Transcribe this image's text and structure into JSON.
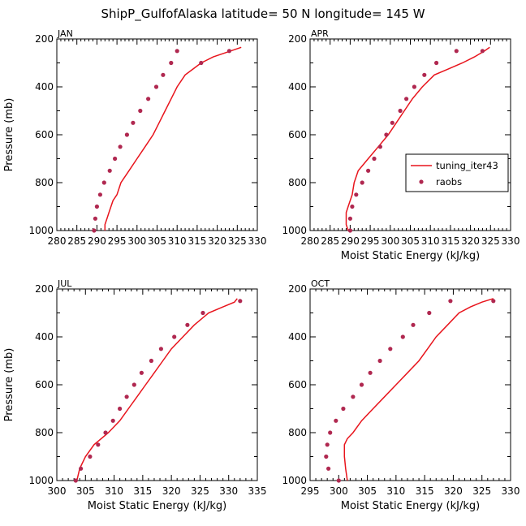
{
  "figure_title": "ShipP_GulfofAlaska  latitude= 50 N longitude= 145 W",
  "colors": {
    "model_line": "#e8141c",
    "raobs_marker": "#b02850",
    "axis": "#000000"
  },
  "legend": {
    "line_label": "tuning_iter43",
    "marker_label": "raobs",
    "placement": "right-center of APR panel"
  },
  "chart_data": [
    {
      "type": "line",
      "panel": "JAN",
      "title": "JAN",
      "xlabel": "",
      "ylabel": "Pressure (mb)",
      "xlim": [
        280,
        330
      ],
      "ylim": [
        1000,
        200
      ],
      "y_inverted": true,
      "xticks": [
        280,
        285,
        290,
        295,
        300,
        305,
        310,
        315,
        320,
        325,
        330
      ],
      "yticks": [
        200,
        400,
        600,
        800,
        1000
      ],
      "series": [
        {
          "name": "tuning_iter43",
          "style": "line",
          "points": [
            [
              292.0,
              1000
            ],
            [
              292.0,
              975
            ],
            [
              292.5,
              950
            ],
            [
              293.0,
              925
            ],
            [
              293.5,
              900
            ],
            [
              294.0,
              875
            ],
            [
              295.0,
              850
            ],
            [
              296.0,
              800
            ],
            [
              298.0,
              750
            ],
            [
              300.0,
              700
            ],
            [
              302.0,
              650
            ],
            [
              304.0,
              600
            ],
            [
              305.5,
              550
            ],
            [
              307.0,
              500
            ],
            [
              308.5,
              450
            ],
            [
              310.0,
              400
            ],
            [
              312.0,
              350
            ],
            [
              314.0,
              325
            ],
            [
              316.0,
              300
            ],
            [
              319.0,
              275
            ],
            [
              322.0,
              258
            ],
            [
              326.0,
              235
            ]
          ]
        },
        {
          "name": "raobs",
          "style": "marker",
          "points": [
            [
              289.3,
              1000
            ],
            [
              289.6,
              950
            ],
            [
              290.0,
              900
            ],
            [
              290.8,
              850
            ],
            [
              291.8,
              800
            ],
            [
              293.2,
              750
            ],
            [
              294.5,
              700
            ],
            [
              295.8,
              650
            ],
            [
              297.5,
              600
            ],
            [
              299.0,
              550
            ],
            [
              300.8,
              500
            ],
            [
              302.8,
              450
            ],
            [
              304.8,
              400
            ],
            [
              306.5,
              350
            ],
            [
              308.5,
              300
            ],
            [
              310.0,
              250
            ],
            [
              316.0,
              300
            ],
            [
              323.0,
              250
            ]
          ]
        }
      ]
    },
    {
      "type": "line",
      "panel": "APR",
      "title": "APR",
      "xlabel": "Moist Static Energy (kJ/kg)",
      "ylabel": "",
      "xlim": [
        280,
        330
      ],
      "ylim": [
        1000,
        200
      ],
      "y_inverted": true,
      "xticks": [
        280,
        285,
        290,
        295,
        300,
        305,
        310,
        315,
        320,
        325,
        330
      ],
      "yticks": [
        200,
        400,
        600,
        800,
        1000
      ],
      "series": [
        {
          "name": "tuning_iter43",
          "style": "line",
          "points": [
            [
              289.5,
              1000
            ],
            [
              289.0,
              975
            ],
            [
              289.0,
              950
            ],
            [
              289.0,
              925
            ],
            [
              289.5,
              900
            ],
            [
              290.0,
              875
            ],
            [
              290.5,
              850
            ],
            [
              291.0,
              800
            ],
            [
              292.0,
              750
            ],
            [
              294.5,
              700
            ],
            [
              297.0,
              650
            ],
            [
              299.5,
              600
            ],
            [
              301.5,
              550
            ],
            [
              303.5,
              500
            ],
            [
              305.5,
              450
            ],
            [
              308.0,
              400
            ],
            [
              311.0,
              350
            ],
            [
              314.5,
              325
            ],
            [
              318.0,
              300
            ],
            [
              321.0,
              275
            ],
            [
              323.5,
              250
            ],
            [
              324.8,
              235
            ]
          ]
        },
        {
          "name": "raobs",
          "style": "marker",
          "points": [
            [
              290.0,
              1000
            ],
            [
              290.0,
              950
            ],
            [
              290.5,
              900
            ],
            [
              291.5,
              850
            ],
            [
              293.0,
              800
            ],
            [
              294.5,
              750
            ],
            [
              296.0,
              700
            ],
            [
              297.5,
              650
            ],
            [
              299.0,
              600
            ],
            [
              300.5,
              550
            ],
            [
              302.5,
              500
            ],
            [
              304.0,
              450
            ],
            [
              306.0,
              400
            ],
            [
              308.5,
              350
            ],
            [
              311.5,
              300
            ],
            [
              316.5,
              250
            ],
            [
              323.0,
              250
            ]
          ]
        }
      ]
    },
    {
      "type": "line",
      "panel": "JUL",
      "title": "JUL",
      "xlabel": "Moist Static Energy (kJ/kg)",
      "ylabel": "Pressure (mb)",
      "xlim": [
        300,
        335
      ],
      "ylim": [
        1000,
        200
      ],
      "y_inverted": true,
      "xticks": [
        300,
        305,
        310,
        315,
        320,
        325,
        330,
        335
      ],
      "yticks": [
        200,
        400,
        600,
        800,
        1000
      ],
      "series": [
        {
          "name": "tuning_iter43",
          "style": "line",
          "points": [
            [
              303.5,
              1000
            ],
            [
              304.0,
              950
            ],
            [
              305.0,
              900
            ],
            [
              306.5,
              850
            ],
            [
              309.0,
              800
            ],
            [
              311.0,
              750
            ],
            [
              312.5,
              700
            ],
            [
              314.0,
              650
            ],
            [
              315.5,
              600
            ],
            [
              317.0,
              550
            ],
            [
              318.5,
              500
            ],
            [
              320.0,
              450
            ],
            [
              322.0,
              400
            ],
            [
              324.0,
              350
            ],
            [
              326.5,
              300
            ],
            [
              329.0,
              275
            ],
            [
              331.0,
              255
            ],
            [
              331.5,
              240
            ]
          ]
        },
        {
          "name": "raobs",
          "style": "marker",
          "points": [
            [
              303.3,
              1000
            ],
            [
              304.2,
              950
            ],
            [
              305.8,
              900
            ],
            [
              307.2,
              850
            ],
            [
              308.5,
              800
            ],
            [
              309.8,
              750
            ],
            [
              311.0,
              700
            ],
            [
              312.2,
              650
            ],
            [
              313.5,
              600
            ],
            [
              314.8,
              550
            ],
            [
              316.5,
              500
            ],
            [
              318.2,
              450
            ],
            [
              320.5,
              400
            ],
            [
              322.8,
              350
            ],
            [
              325.5,
              300
            ],
            [
              332.0,
              250
            ]
          ]
        }
      ]
    },
    {
      "type": "line",
      "panel": "OCT",
      "title": "OCT",
      "xlabel": "Moist Static Energy (kJ/kg)",
      "ylabel": "",
      "xlim": [
        295,
        330
      ],
      "ylim": [
        1000,
        200
      ],
      "y_inverted": true,
      "xticks": [
        295,
        300,
        305,
        310,
        315,
        320,
        325,
        330
      ],
      "yticks": [
        200,
        400,
        600,
        800,
        1000
      ],
      "series": [
        {
          "name": "tuning_iter43",
          "style": "line",
          "points": [
            [
              301.5,
              1000
            ],
            [
              301.2,
              950
            ],
            [
              301.0,
              900
            ],
            [
              301.0,
              850
            ],
            [
              301.5,
              825
            ],
            [
              302.5,
              800
            ],
            [
              304.0,
              750
            ],
            [
              306.0,
              700
            ],
            [
              308.0,
              650
            ],
            [
              310.0,
              600
            ],
            [
              312.0,
              550
            ],
            [
              314.0,
              500
            ],
            [
              315.5,
              450
            ],
            [
              317.0,
              400
            ],
            [
              319.0,
              350
            ],
            [
              321.0,
              300
            ],
            [
              323.0,
              275
            ],
            [
              325.0,
              255
            ],
            [
              327.0,
              240
            ]
          ]
        },
        {
          "name": "raobs",
          "style": "marker",
          "points": [
            [
              300.0,
              1000
            ],
            [
              298.2,
              950
            ],
            [
              297.8,
              900
            ],
            [
              298.0,
              850
            ],
            [
              298.5,
              800
            ],
            [
              299.5,
              750
            ],
            [
              300.8,
              700
            ],
            [
              302.5,
              650
            ],
            [
              304.0,
              600
            ],
            [
              305.5,
              550
            ],
            [
              307.2,
              500
            ],
            [
              309.0,
              450
            ],
            [
              311.2,
              400
            ],
            [
              313.0,
              350
            ],
            [
              315.8,
              300
            ],
            [
              319.5,
              250
            ],
            [
              327.0,
              250
            ]
          ]
        }
      ]
    }
  ]
}
